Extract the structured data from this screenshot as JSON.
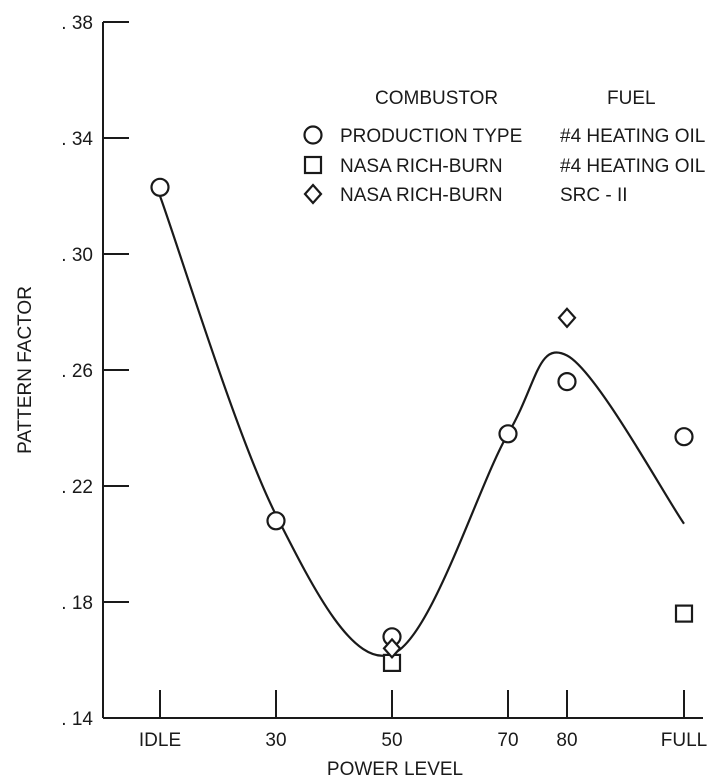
{
  "chart_data": {
    "type": "scatter",
    "xlabel": "POWER LEVEL",
    "ylabel": "PATTERN FACTOR",
    "ylim": [
      0.14,
      0.38
    ],
    "y_ticks": [
      {
        "value": 0.14,
        "label": ". 14"
      },
      {
        "value": 0.18,
        "label": ". 18"
      },
      {
        "value": 0.22,
        "label": ". 22"
      },
      {
        "value": 0.26,
        "label": ". 26"
      },
      {
        "value": 0.3,
        "label": ". 30"
      },
      {
        "value": 0.34,
        "label": ". 34"
      },
      {
        "value": 0.38,
        "label": ". 38"
      }
    ],
    "x_categories": [
      "IDLE",
      "30",
      "50",
      "70",
      "80",
      "FULL"
    ],
    "legend": {
      "placement": "top-right",
      "headers": {
        "combustor": "COMBUSTOR",
        "fuel": "FUEL"
      },
      "entries": [
        {
          "marker": "circle",
          "combustor": "PRODUCTION TYPE",
          "fuel": "#4 HEATING OIL"
        },
        {
          "marker": "square",
          "combustor": "NASA RICH-BURN",
          "fuel": "#4 HEATING OIL"
        },
        {
          "marker": "diamond",
          "combustor": "NASA RICH-BURN",
          "fuel": "SRC - II"
        }
      ]
    },
    "series": [
      {
        "marker": "circle",
        "points": [
          {
            "x": "IDLE",
            "y": 0.323
          },
          {
            "x": "30",
            "y": 0.208
          },
          {
            "x": "50",
            "y": 0.168
          },
          {
            "x": "70",
            "y": 0.238
          },
          {
            "x": "80",
            "y": 0.256
          },
          {
            "x": "FULL",
            "y": 0.237
          }
        ]
      },
      {
        "marker": "square",
        "points": [
          {
            "x": "50",
            "y": 0.159
          },
          {
            "x": "FULL",
            "y": 0.176
          }
        ]
      },
      {
        "marker": "diamond",
        "points": [
          {
            "x": "50",
            "y": 0.164
          },
          {
            "x": "80",
            "y": 0.278
          }
        ]
      }
    ],
    "fit_curve": {
      "points": [
        {
          "x": "IDLE",
          "y": 0.32
        },
        {
          "x": "30",
          "y": 0.21
        },
        {
          "x": "50",
          "y": 0.162
        },
        {
          "x": "70",
          "y": 0.238
        },
        {
          "x": "80",
          "y": 0.265
        },
        {
          "x": "FULL",
          "y": 0.207
        }
      ]
    },
    "grid": false,
    "colors": {
      "ink": "#1a1a1a",
      "background": "#ffffff"
    }
  }
}
